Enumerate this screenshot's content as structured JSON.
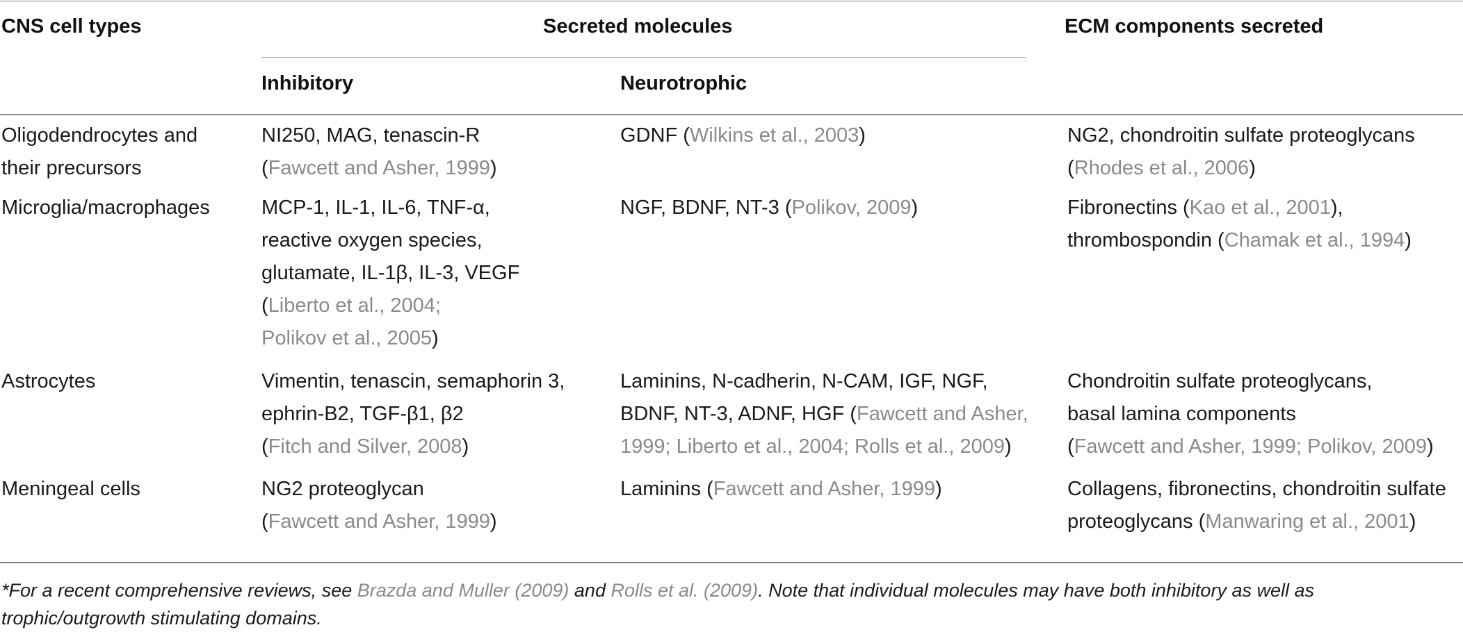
{
  "headers": {
    "cell_types": "CNS cell types",
    "secreted_molecules": "Secreted molecules",
    "ecm": "ECM components secreted",
    "inhibitory": "Inhibitory",
    "neurotrophic": "Neurotrophic"
  },
  "rows": [
    {
      "cell_type": [
        "Oligodendrocytes and",
        "their precursors"
      ],
      "inhibitory": [
        [
          {
            "t": "NI250, MAG, tenascin-R"
          }
        ],
        [
          {
            "t": "("
          },
          {
            "t": "Fawcett and Asher, 1999",
            "ref": true
          },
          {
            "t": ")"
          }
        ]
      ],
      "neurotrophic": [
        [
          {
            "t": "GDNF ("
          },
          {
            "t": "Wilkins et al., 2003",
            "ref": true
          },
          {
            "t": ")"
          }
        ]
      ],
      "ecm": [
        [
          {
            "t": "NG2, chondroitin sulfate proteoglycans"
          }
        ],
        [
          {
            "t": "("
          },
          {
            "t": "Rhodes et al., 2006",
            "ref": true
          },
          {
            "t": ")"
          }
        ]
      ]
    },
    {
      "cell_type": [
        "Microglia/macrophages"
      ],
      "inhibitory": [
        [
          {
            "t": "MCP-1, IL-1, IL-6, TNF-α,"
          }
        ],
        [
          {
            "t": "reactive oxygen species,"
          }
        ],
        [
          {
            "t": "glutamate, IL-1β, IL-3, VEGF"
          }
        ],
        [
          {
            "t": "("
          },
          {
            "t": "Liberto et al., 2004;",
            "ref": true
          }
        ],
        [
          {
            "t": "Polikov et al., 2005",
            "ref": true
          },
          {
            "t": ")"
          }
        ]
      ],
      "neurotrophic": [
        [
          {
            "t": "NGF, BDNF, NT-3 ("
          },
          {
            "t": "Polikov, 2009",
            "ref": true
          },
          {
            "t": ")"
          }
        ]
      ],
      "ecm": [
        [
          {
            "t": "Fibronectins ("
          },
          {
            "t": "Kao et al., 2001",
            "ref": true
          },
          {
            "t": "),"
          }
        ],
        [
          {
            "t": "thrombospondin ("
          },
          {
            "t": "Chamak et al., 1994",
            "ref": true
          },
          {
            "t": ")"
          }
        ]
      ]
    },
    {
      "cell_type": [
        "Astrocytes"
      ],
      "inhibitory": [
        [
          {
            "t": "Vimentin, tenascin, semaphorin 3,"
          }
        ],
        [
          {
            "t": "ephrin-B2, TGF-β1, β2"
          }
        ],
        [
          {
            "t": "("
          },
          {
            "t": "Fitch and Silver, 2008",
            "ref": true
          },
          {
            "t": ")"
          }
        ]
      ],
      "neurotrophic": [
        [
          {
            "t": "Laminins, N-cadherin, N-CAM, IGF, NGF,"
          }
        ],
        [
          {
            "t": "BDNF, NT-3, ADNF, HGF ("
          },
          {
            "t": "Fawcett and Asher,",
            "ref": true
          }
        ],
        [
          {
            "t": "1999; Liberto et al., 2004; Rolls et al., 2009",
            "ref": true
          },
          {
            "t": ")"
          }
        ]
      ],
      "ecm": [
        [
          {
            "t": "Chondroitin sulfate proteoglycans,"
          }
        ],
        [
          {
            "t": "basal lamina components"
          }
        ],
        [
          {
            "t": "("
          },
          {
            "t": "Fawcett and Asher, 1999; Polikov, 2009",
            "ref": true
          },
          {
            "t": ")"
          }
        ]
      ]
    },
    {
      "cell_type": [
        "Meningeal cells"
      ],
      "inhibitory": [
        [
          {
            "t": "NG2 proteoglycan"
          }
        ],
        [
          {
            "t": "("
          },
          {
            "t": "Fawcett and Asher, 1999",
            "ref": true
          },
          {
            "t": ")"
          }
        ]
      ],
      "neurotrophic": [
        [
          {
            "t": "Laminins ("
          },
          {
            "t": "Fawcett and Asher, 1999",
            "ref": true
          },
          {
            "t": ")"
          }
        ]
      ],
      "ecm": [
        [
          {
            "t": "Collagens, fibronectins, chondroitin sulfate"
          }
        ],
        [
          {
            "t": "proteoglycans ("
          },
          {
            "t": "Manwaring et al., 2001",
            "ref": true
          },
          {
            "t": ")"
          }
        ]
      ]
    }
  ],
  "footnote": [
    [
      {
        "t": "*For a recent comprehensive reviews, see "
      },
      {
        "t": "Brazda and Muller (2009)",
        "ref": true
      },
      {
        "t": " and "
      },
      {
        "t": "Rolls et al. (2009)",
        "ref": true
      },
      {
        "t": ". Note that individual molecules may have both inhibitory as well as"
      }
    ],
    [
      {
        "t": "trophic/outgrowth stimulating domains."
      }
    ]
  ]
}
